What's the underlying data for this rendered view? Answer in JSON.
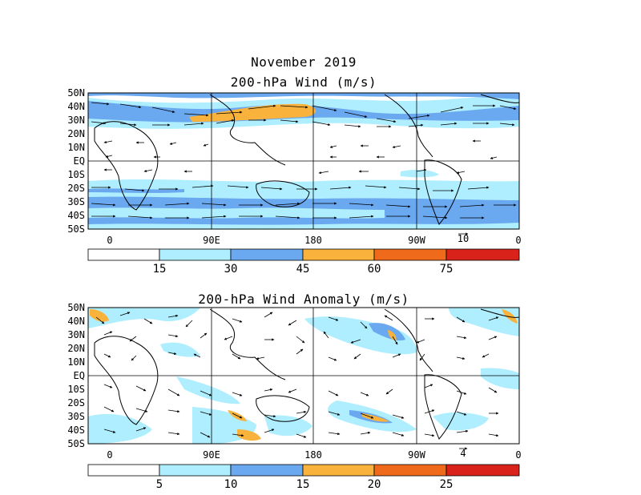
{
  "month_title": "November 2019",
  "top_map": {
    "title": "200-hPa Wind (m/s)",
    "lat_labels": [
      "50N",
      "40N",
      "30N",
      "20N",
      "10N",
      "EQ",
      "10S",
      "20S",
      "30S",
      "40S",
      "50S"
    ],
    "lon_labels": [
      "0",
      "90E",
      "180",
      "90W",
      "0"
    ],
    "ref_vector": "10",
    "colorbar": {
      "ticks": [
        "15",
        "30",
        "45",
        "60",
        "75"
      ],
      "colors": [
        "#ffffff",
        "#aeeefe",
        "#6aa8f0",
        "#f9b23c",
        "#f06a1c",
        "#d8221a"
      ]
    }
  },
  "bottom_map": {
    "title": "200-hPa Wind Anomaly (m/s)",
    "lat_labels": [
      "50N",
      "40N",
      "30N",
      "20N",
      "10N",
      "EQ",
      "10S",
      "20S",
      "30S",
      "40S",
      "50S"
    ],
    "lon_labels": [
      "0",
      "90E",
      "180",
      "90W",
      "0"
    ],
    "ref_vector": "4",
    "colorbar": {
      "ticks": [
        "5",
        "10",
        "15",
        "20",
        "25"
      ],
      "colors": [
        "#ffffff",
        "#aeeefe",
        "#6aa8f0",
        "#f9b23c",
        "#f06a1c",
        "#d8221a"
      ]
    }
  }
}
